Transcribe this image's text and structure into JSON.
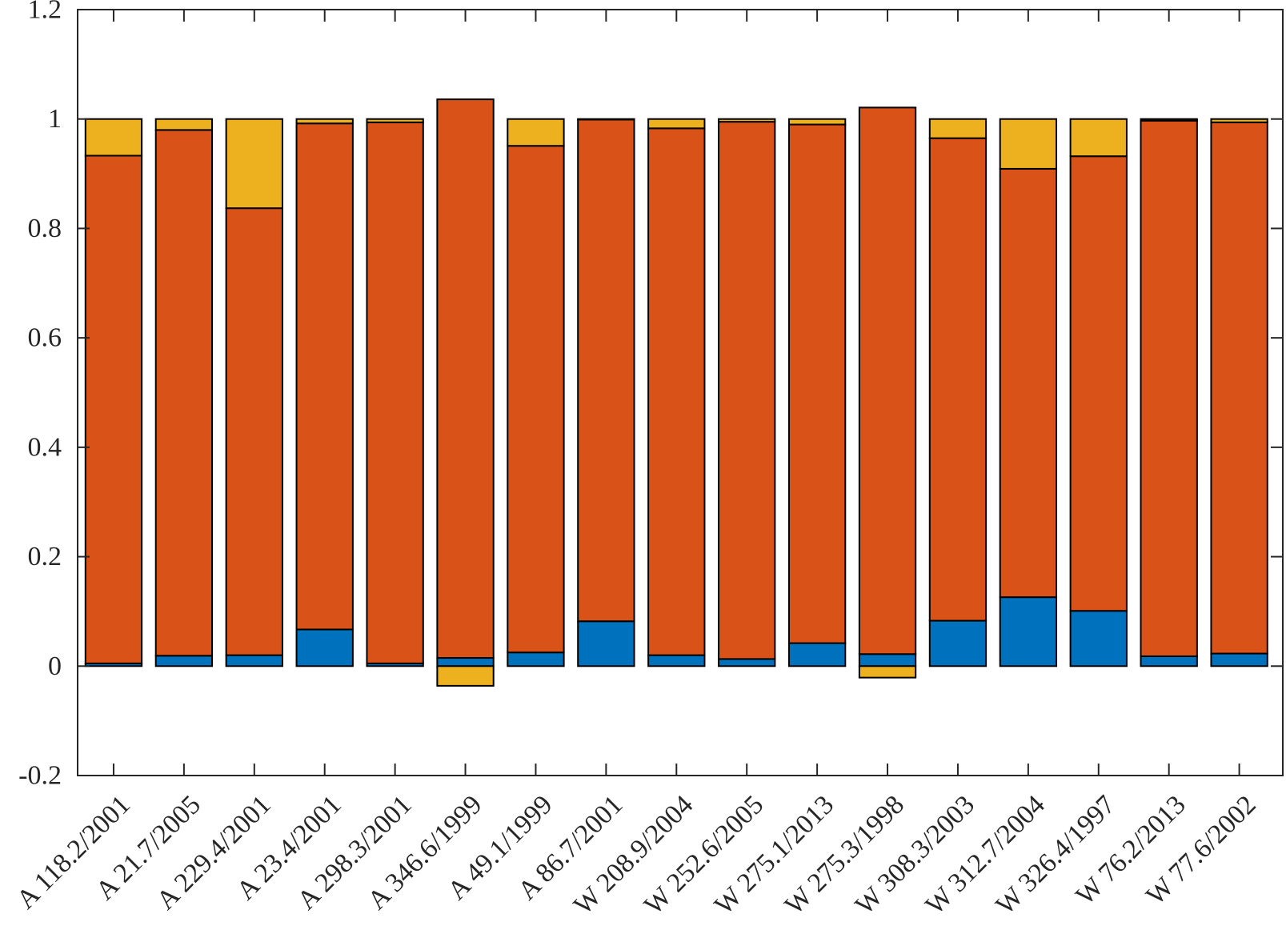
{
  "chart_data": {
    "type": "bar",
    "stacked": true,
    "categories": [
      "A 118.2/2001",
      "A 21.7/2005",
      "A 229.4/2001",
      "A 23.4/2001",
      "A 298.3/2001",
      "A 346.6/1999",
      "A 49.1/1999",
      "A 86.7/2001",
      "W 208.9/2004",
      "W 252.6/2005",
      "W 275.1/2013",
      "W 275.3/1998",
      "W 308.3/2003",
      "W 312.7/2004",
      "W 326.4/1997",
      "W 76.2/2013",
      "W 77.6/2002"
    ],
    "series": [
      {
        "color": "#0072BD",
        "values": [
          0.005,
          0.019,
          0.02,
          0.067,
          0.005,
          0.015,
          0.025,
          0.082,
          0.02,
          0.013,
          0.042,
          0.022,
          0.083,
          0.126,
          0.101,
          0.018,
          0.023
        ]
      },
      {
        "color": "#D95319",
        "values": [
          0.928,
          0.961,
          0.817,
          0.925,
          0.989,
          1.021,
          0.926,
          0.917,
          0.963,
          0.982,
          0.948,
          0.999,
          0.882,
          0.783,
          0.831,
          0.979,
          0.971
        ]
      },
      {
        "color": "#EDB120",
        "values": [
          0.067,
          0.02,
          0.163,
          0.008,
          0.006,
          -0.036,
          0.049,
          0.001,
          0.017,
          0.005,
          0.01,
          -0.021,
          0.035,
          0.091,
          0.068,
          0.003,
          0.006
        ]
      }
    ],
    "ylim": [
      -0.2,
      1.2
    ],
    "yticks": [
      "-0.2",
      "0",
      "0.2",
      "0.4",
      "0.6",
      "0.8",
      "1",
      "1.2"
    ],
    "ytick_values": [
      -0.2,
      0,
      0.2,
      0.4,
      0.6,
      0.8,
      1,
      1.2
    ],
    "title": "",
    "xlabel": "",
    "ylabel": "",
    "grid": false,
    "legend": "none"
  }
}
